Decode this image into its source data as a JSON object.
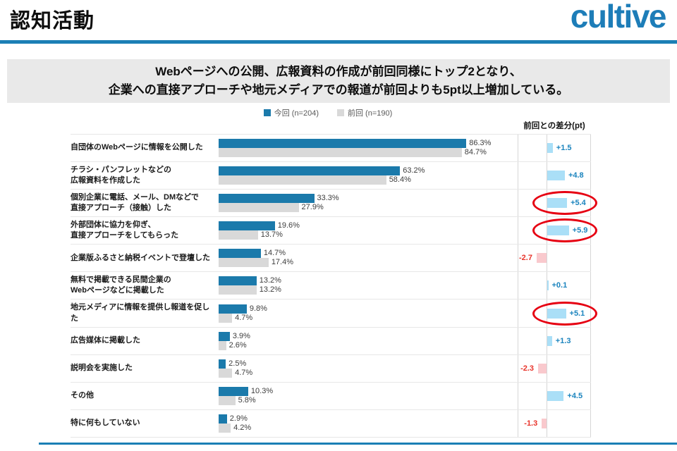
{
  "header": {
    "title": "認知活動",
    "logo": "cultive"
  },
  "headline": {
    "line1": "Webページへの公開、広報資料の作成が前回同様にトップ2となり、",
    "line2": "企業への直接アプローチや地元メディアでの報道が前回よりも5pt以上増加している。"
  },
  "colors": {
    "brand_blue": "#1d7db8",
    "rule_blue": "#1b7fb5",
    "current_bar": "#1b7aab",
    "previous_bar": "#d9d9d9",
    "diff_positive_bar": "#aadff7",
    "diff_positive_text": "#1b84be",
    "diff_negative_bar": "#f9c9cd",
    "diff_negative_text": "#e8332a",
    "highlight_ellipse": "#e60012",
    "headline_bg": "#e9e9e9"
  },
  "chart_data": {
    "type": "bar",
    "orientation": "horizontal",
    "title": "",
    "xlabel": "",
    "ylabel": "",
    "xlim": [
      0,
      100
    ],
    "grid": "row-separators",
    "legend_position": "top-center",
    "value_suffix": "%",
    "legend": [
      {
        "label": "今回 (n=204)",
        "color": "#1b7aab"
      },
      {
        "label": "前回 (n=190)",
        "color": "#d9d9d9"
      }
    ],
    "diff_header": "前回との差分(pt)",
    "categories": [
      "自団体のWebページに情報を公開した",
      "チラシ・パンフレットなどの\n広報資料を作成した",
      "個別企業に電話、メール、DMなどで\n直接アプローチ（接触）した",
      "外部団体に協力を仰ぎ、\n直接アプローチをしてもらった",
      "企業版ふるさと納税イベントで登壇した",
      "無料で掲載できる民間企業の\nWebページなどに掲載した",
      "地元メディアに情報を提供し報道を促した",
      "広告媒体に掲載した",
      "説明会を実施した",
      "その他",
      "特に何もしていない"
    ],
    "series": [
      {
        "name": "今回 (n=204)",
        "values": [
          86.3,
          63.2,
          33.3,
          19.6,
          14.7,
          13.2,
          9.8,
          3.9,
          2.5,
          10.3,
          2.9
        ]
      },
      {
        "name": "前回 (n=190)",
        "values": [
          84.7,
          58.4,
          27.9,
          13.7,
          17.4,
          13.2,
          4.7,
          2.6,
          4.7,
          5.8,
          4.2
        ]
      }
    ],
    "diff": {
      "values": [
        1.5,
        4.8,
        5.4,
        5.9,
        -2.7,
        0.1,
        5.1,
        1.3,
        -2.3,
        4.5,
        -1.3
      ],
      "highlighted_indexes": [
        2,
        3,
        6
      ]
    }
  }
}
